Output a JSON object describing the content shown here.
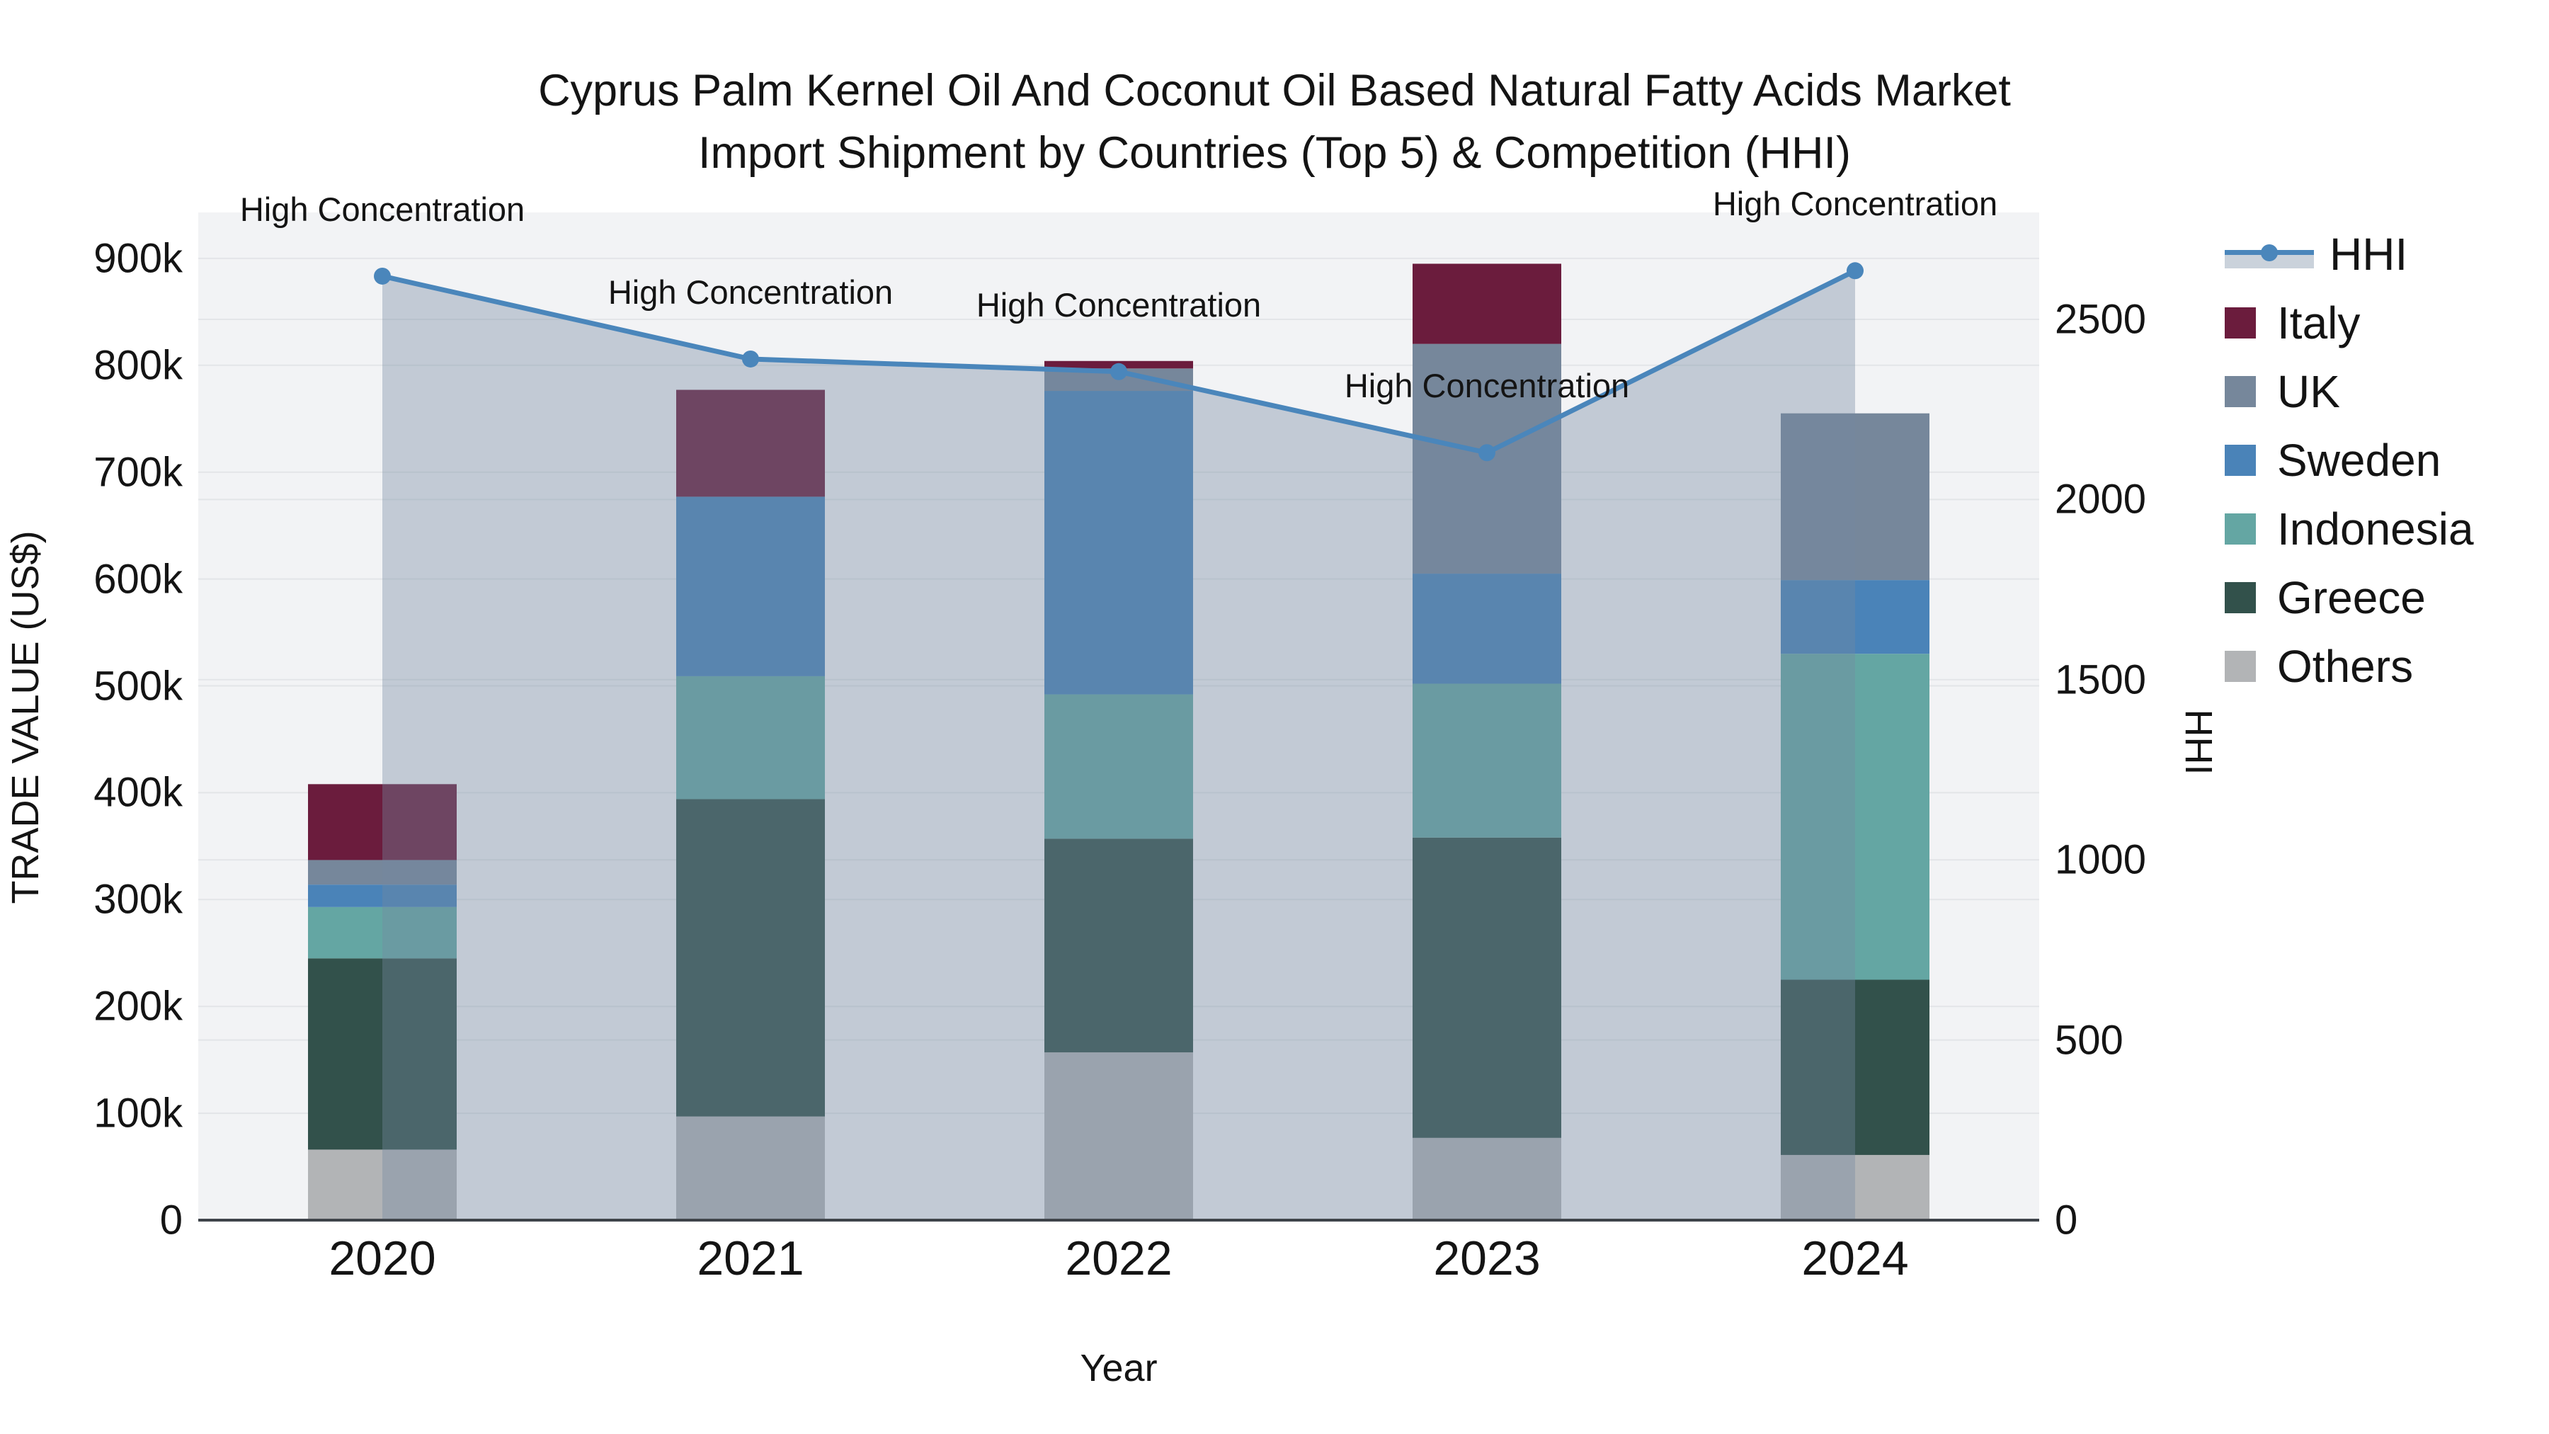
{
  "title": {
    "line1": "Cyprus Palm Kernel Oil And Coconut Oil Based Natural Fatty Acids Market",
    "line2": "Import Shipment by Countries (Top 5) & Competition (HHI)"
  },
  "legend": {
    "items": [
      {
        "label": "HHI",
        "type": "line",
        "color_key": "hhi_line"
      },
      {
        "label": "Italy",
        "type": "swatch",
        "color_key": "Italy"
      },
      {
        "label": "UK",
        "type": "swatch",
        "color_key": "UK"
      },
      {
        "label": "Sweden",
        "type": "swatch",
        "color_key": "Sweden"
      },
      {
        "label": "Indonesia",
        "type": "swatch",
        "color_key": "Indonesia"
      },
      {
        "label": "Greece",
        "type": "swatch",
        "color_key": "Greece"
      },
      {
        "label": "Others",
        "type": "swatch",
        "color_key": "Others"
      }
    ]
  },
  "colors": {
    "hhi_line": "#4a86bb",
    "hhi_fill": "rgba(116,136,160,0.38)",
    "Italy": "#6b1c3d",
    "UK": "#76879b",
    "Sweden": "#4a83b8",
    "Indonesia": "#64a6a3",
    "Greece": "#32514b",
    "Others": "#b2b4b6",
    "plot_bg": "#f2f3f5",
    "gridline": "#e3e5e8",
    "axis_line": "#3f444a",
    "text": "#141414"
  },
  "chart_data": {
    "type": "bar+line",
    "title": "Cyprus Palm Kernel Oil And Coconut Oil Based Natural Fatty Acids Market Import Shipment by Countries (Top 5) & Competition (HHI)",
    "categories": [
      "2020",
      "2021",
      "2022",
      "2023",
      "2024"
    ],
    "x_label": "Year",
    "y_left": {
      "label": "TRADE VALUE (US$)",
      "ticks": [
        "0",
        "100k",
        "200k",
        "300k",
        "400k",
        "500k",
        "600k",
        "700k",
        "800k",
        "900k"
      ],
      "tick_step_usd": 100000,
      "range_usd_k": [
        0,
        940
      ]
    },
    "y_right": {
      "label": "HHI",
      "ticks": [
        "0",
        "500",
        "1000",
        "1500",
        "2000",
        "2500"
      ],
      "tick_step": 500,
      "range": [
        0,
        2790
      ]
    },
    "stack_order_bottom_to_top": [
      "Others",
      "Greece",
      "Indonesia",
      "Sweden",
      "UK",
      "Italy"
    ],
    "series": [
      {
        "name": "Italy",
        "values_usd_k": [
          71,
          100,
          7,
          75,
          0
        ]
      },
      {
        "name": "UK",
        "values_usd_k": [
          23,
          0,
          21,
          215,
          156
        ]
      },
      {
        "name": "Sweden",
        "values_usd_k": [
          21,
          168,
          284,
          103,
          69
        ]
      },
      {
        "name": "Indonesia",
        "values_usd_k": [
          48,
          115,
          135,
          144,
          305
        ]
      },
      {
        "name": "Greece",
        "values_usd_k": [
          179,
          297,
          200,
          281,
          164
        ]
      },
      {
        "name": "Others",
        "values_usd_k": [
          66,
          97,
          157,
          77,
          61
        ]
      }
    ],
    "hhi_line": {
      "name": "HHI",
      "values": [
        2620,
        2390,
        2355,
        2130,
        2635
      ]
    },
    "annotations": [
      {
        "x": "2020",
        "text": "High Concentration"
      },
      {
        "x": "2021",
        "text": "High Concentration"
      },
      {
        "x": "2022",
        "text": "High Concentration"
      },
      {
        "x": "2023",
        "text": "High Concentration"
      },
      {
        "x": "2024",
        "text": "High Concentration"
      }
    ],
    "legend_position": "right",
    "grid": true
  }
}
